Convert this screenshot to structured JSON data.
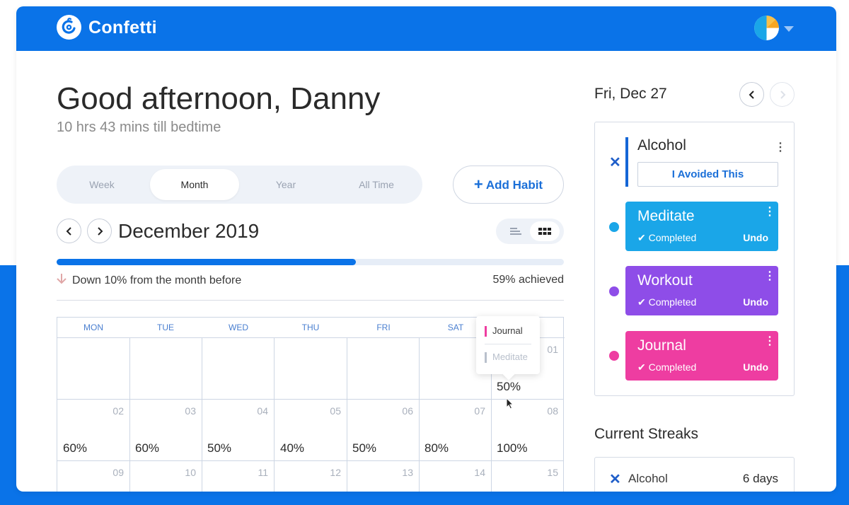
{
  "app": {
    "name": "Confetti"
  },
  "header": {
    "greeting": "Good afternoon, Danny",
    "subtitle": "10 hrs 43 mins till bedtime"
  },
  "range_tabs": [
    {
      "label": "Week",
      "active": false
    },
    {
      "label": "Month",
      "active": true
    },
    {
      "label": "Year",
      "active": false
    },
    {
      "label": "All Time",
      "active": false
    }
  ],
  "add_habit": {
    "label": "Add Habit",
    "icon": "plus-icon"
  },
  "month_nav": {
    "title": "December 2019"
  },
  "progress": {
    "value": 0.59,
    "change_text": "Down 10% from the month before",
    "achieved_text": "59% achieved"
  },
  "calendar": {
    "days": [
      "MON",
      "TUE",
      "WED",
      "THU",
      "FRI",
      "SAT",
      "SUN"
    ],
    "weeks": [
      [
        {
          "num": "",
          "pct": ""
        },
        {
          "num": "",
          "pct": ""
        },
        {
          "num": "",
          "pct": ""
        },
        {
          "num": "",
          "pct": ""
        },
        {
          "num": "",
          "pct": ""
        },
        {
          "num": "",
          "pct": ""
        },
        {
          "num": "01",
          "pct": "50%"
        }
      ],
      [
        {
          "num": "02",
          "pct": "60%"
        },
        {
          "num": "03",
          "pct": "60%"
        },
        {
          "num": "04",
          "pct": "50%"
        },
        {
          "num": "05",
          "pct": "40%"
        },
        {
          "num": "06",
          "pct": "50%"
        },
        {
          "num": "07",
          "pct": "80%"
        },
        {
          "num": "08",
          "pct": "100%"
        }
      ],
      [
        {
          "num": "09",
          "pct": ""
        },
        {
          "num": "10",
          "pct": ""
        },
        {
          "num": "11",
          "pct": ""
        },
        {
          "num": "12",
          "pct": ""
        },
        {
          "num": "13",
          "pct": ""
        },
        {
          "num": "14",
          "pct": ""
        },
        {
          "num": "15",
          "pct": ""
        }
      ]
    ]
  },
  "tooltip": {
    "items": [
      {
        "label": "Journal",
        "color": "#ee3da1",
        "muted": false
      },
      {
        "label": "Meditate",
        "color": "#b9c0cc",
        "muted": true
      }
    ]
  },
  "day_panel": {
    "date": "Fri, Dec 27",
    "avoid_habit": {
      "name": "Alcohol",
      "button": "I Avoided This",
      "color": "#1566d6"
    },
    "habits": [
      {
        "name": "Meditate",
        "status": "Completed",
        "undo": "Undo",
        "color": "#1aa6e8"
      },
      {
        "name": "Workout",
        "status": "Completed",
        "undo": "Undo",
        "color": "#8e4de8"
      },
      {
        "name": "Journal",
        "status": "Completed",
        "undo": "Undo",
        "color": "#ee3da1"
      }
    ]
  },
  "streaks": {
    "title": "Current Streaks",
    "items": [
      {
        "name": "Alcohol",
        "value": "6 days"
      }
    ]
  },
  "colors": {
    "brand": "#0a73e8",
    "accent": "#1a6fd8"
  }
}
